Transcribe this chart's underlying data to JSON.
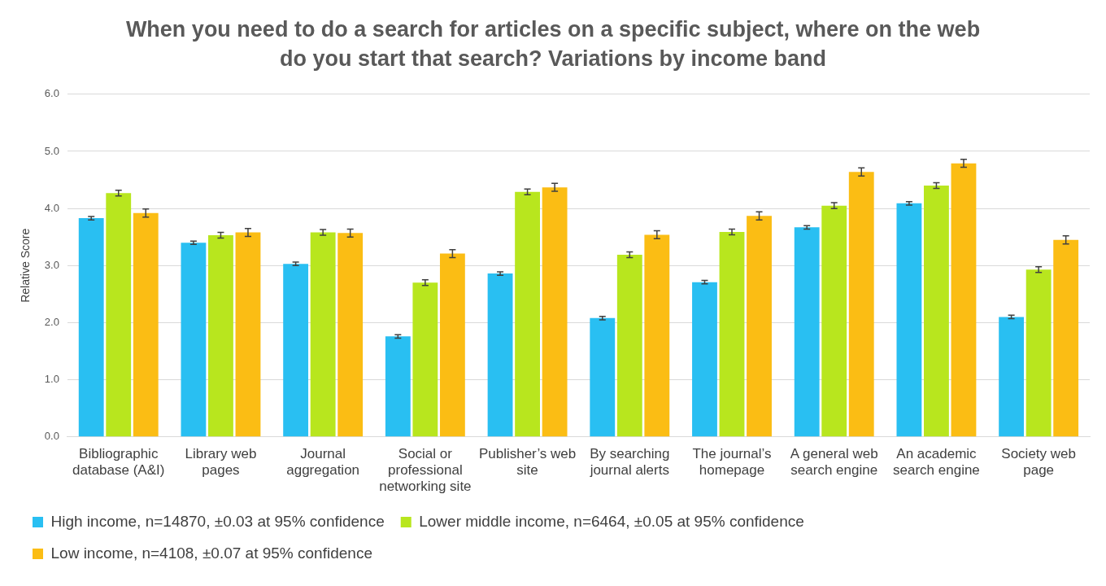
{
  "chart_data": {
    "type": "bar",
    "title": "When you need to do a search for articles on a specific subject, where on the web do you start that search? Variations by income band",
    "ylabel": "Relative Score",
    "categories": [
      "Bibliographic database (A&I)",
      "Library web pages",
      "Journal aggregation",
      "Social or professional networking site",
      "Publisher’s web site",
      "By searching journal alerts",
      "The journal’s homepage",
      "A general web search engine",
      "An academic search engine",
      "Society web page"
    ],
    "series": [
      {
        "name": "High income, n=14870, ±0.03 at 95% confidence",
        "color": "#29bff2",
        "values": [
          3.83,
          3.4,
          3.03,
          1.76,
          2.86,
          2.08,
          2.71,
          3.67,
          4.09,
          2.1
        ],
        "errors": [
          0.03,
          0.03,
          0.03,
          0.03,
          0.03,
          0.03,
          0.03,
          0.03,
          0.03,
          0.03
        ]
      },
      {
        "name": "Lower middle income, n=6464, ±0.05 at 95% confidence",
        "color": "#b8e61e",
        "values": [
          4.27,
          3.53,
          3.58,
          2.7,
          4.29,
          3.19,
          3.59,
          4.05,
          4.4,
          2.93
        ],
        "errors": [
          0.05,
          0.05,
          0.05,
          0.05,
          0.05,
          0.05,
          0.05,
          0.05,
          0.05,
          0.05
        ]
      },
      {
        "name": "Low income, n=4108, ±0.07 at 95% confidence",
        "color": "#fbbd14",
        "values": [
          3.92,
          3.58,
          3.57,
          3.21,
          4.37,
          3.54,
          3.87,
          4.64,
          4.79,
          3.45
        ],
        "errors": [
          0.07,
          0.07,
          0.07,
          0.07,
          0.07,
          0.07,
          0.07,
          0.07,
          0.07,
          0.07
        ]
      }
    ],
    "ylim": [
      0,
      6
    ],
    "yticks": [
      {
        "value": 0,
        "label": "0.0"
      },
      {
        "value": 1,
        "label": "1.0"
      },
      {
        "value": 2,
        "label": "2.0"
      },
      {
        "value": 3,
        "label": "3.0"
      },
      {
        "value": 4,
        "label": "4.0"
      },
      {
        "value": 5,
        "label": "5.0"
      },
      {
        "value": 6,
        "label": "6.0"
      }
    ],
    "grid": "y",
    "legend": "bottom"
  }
}
